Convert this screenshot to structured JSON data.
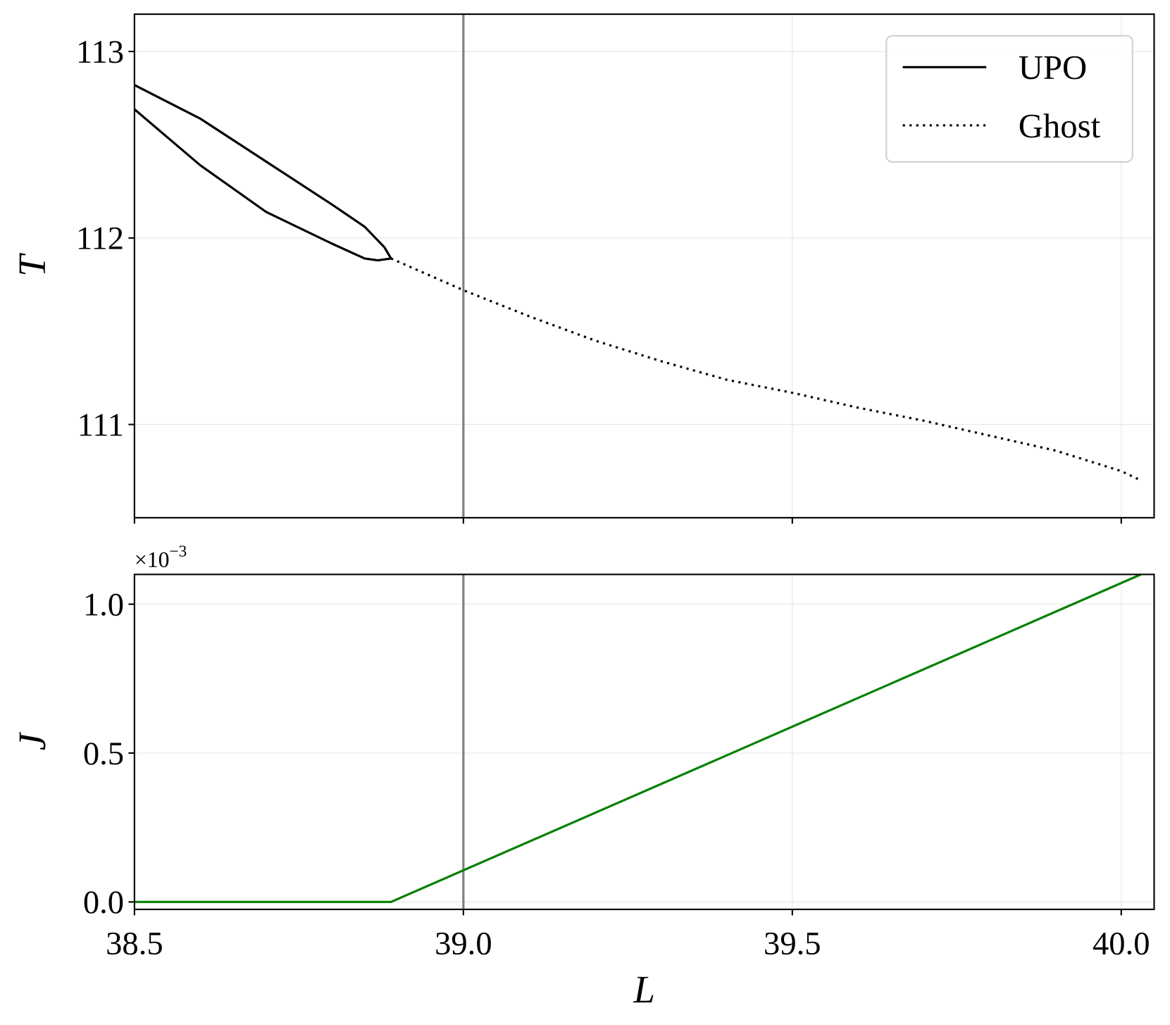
{
  "chart_data": [
    {
      "type": "line",
      "y_label": "T",
      "xlim": [
        38.5,
        40.05
      ],
      "ylim": [
        110.5,
        113.2
      ],
      "xticks": [
        38.5,
        39,
        39.5,
        40
      ],
      "show_xtick_labels": false,
      "yticks": [
        111,
        112,
        113
      ],
      "grid": true,
      "vline_x": 39,
      "vline_color": "#808080",
      "legend": "upper right",
      "series": [
        {
          "name": "UPO",
          "color": "#000000",
          "style": "solid",
          "x": [
            38.5,
            38.6,
            38.7,
            38.8,
            38.85,
            38.88,
            38.89,
            38.87,
            38.85,
            38.8,
            38.7,
            38.6,
            38.5
          ],
          "values": [
            112.82,
            112.64,
            112.41,
            112.18,
            112.06,
            111.95,
            111.89,
            111.88,
            111.89,
            111.97,
            112.14,
            112.39,
            112.69
          ]
        },
        {
          "name": "Ghost",
          "color": "#000000",
          "style": "dotted",
          "x": [
            38.89,
            39.0,
            39.1,
            39.2,
            39.3,
            39.4,
            39.5,
            39.6,
            39.7,
            39.8,
            39.9,
            40.0,
            40.03
          ],
          "values": [
            111.89,
            111.72,
            111.58,
            111.45,
            111.34,
            111.24,
            111.17,
            111.09,
            111.02,
            110.94,
            110.86,
            110.75,
            110.7
          ]
        }
      ]
    },
    {
      "type": "line",
      "x_label": "L",
      "y_label": "J",
      "offset_text": {
        "base": "×10",
        "exponent": "−3"
      },
      "xlim": [
        38.5,
        40.05
      ],
      "ylim": [
        -2.5e-05,
        0.0011
      ],
      "xticks": [
        38.5,
        {
          "value": 39,
          "label": "39.0"
        },
        39.5,
        {
          "value": 40,
          "label": "40.0"
        }
      ],
      "show_xtick_labels": true,
      "yticks": [
        {
          "value": 0,
          "label": "0.0"
        },
        {
          "value": 0.0005,
          "label": "0.5"
        },
        {
          "value": 0.001,
          "label": "1.0"
        }
      ],
      "grid": true,
      "vline_x": 39,
      "vline_color": "#808080",
      "series": [
        {
          "color": "#008000",
          "style": "solid",
          "x": [
            38.5,
            38.89,
            40.03
          ],
          "values": [
            0,
            0,
            0.0011
          ]
        }
      ]
    }
  ]
}
